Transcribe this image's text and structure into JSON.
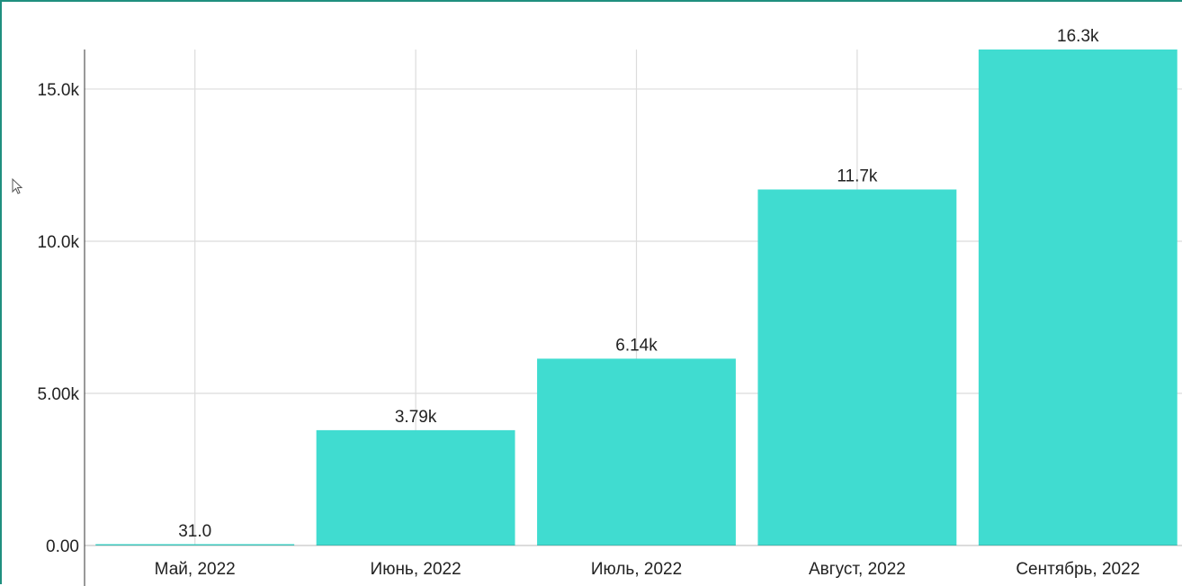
{
  "chart_data": {
    "type": "bar",
    "categories": [
      "Май, 2022",
      "Июнь, 2022",
      "Июль, 2022",
      "Август, 2022",
      "Сентябрь, 2022"
    ],
    "values": [
      31,
      3790,
      6140,
      11700,
      16300
    ],
    "data_labels": [
      "31.0",
      "3.79k",
      "6.14k",
      "11.7k",
      "16.3k"
    ],
    "y_ticks": [
      0,
      5000,
      10000,
      15000
    ],
    "y_tick_labels": [
      "0.00",
      "5.00k",
      "10.0k",
      "15.0k"
    ],
    "ylim": [
      0,
      16300
    ],
    "grid": true,
    "legend": "none",
    "bar_color": "#40dcd0",
    "title": "",
    "xlabel": "",
    "ylabel": ""
  }
}
